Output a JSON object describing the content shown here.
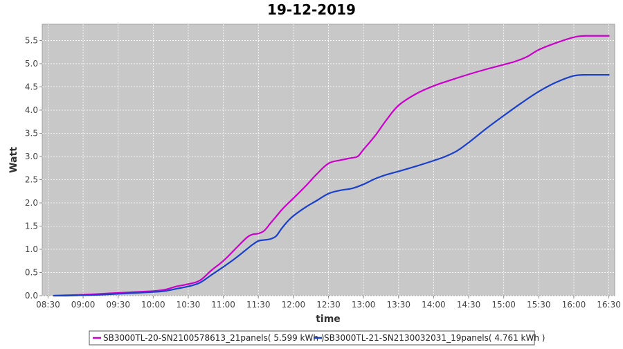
{
  "chart_data": {
    "type": "line",
    "title": "19-12-2019",
    "xlabel": "time",
    "ylabel": "Watt",
    "xlim": [
      "08:25",
      "16:35"
    ],
    "ylim": [
      0.0,
      5.85
    ],
    "x_ticks": [
      "08:30",
      "09:00",
      "09:30",
      "10:00",
      "10:30",
      "11:00",
      "11:30",
      "12:00",
      "12:30",
      "13:00",
      "13:30",
      "14:00",
      "14:30",
      "15:00",
      "15:30",
      "16:00",
      "16:30"
    ],
    "y_ticks": [
      "0.0",
      "0.5",
      "1.0",
      "1.5",
      "2.0",
      "2.5",
      "3.0",
      "3.5",
      "4.0",
      "4.5",
      "5.0",
      "5.5"
    ],
    "grid": true,
    "legend_position": "bottom",
    "plot_background": "#c8c8c8",
    "series": [
      {
        "name": "SB3000TL-20-SN2100578613_21panels( 5.599 kWh )",
        "color": "#cc00cc",
        "x": [
          "08:35",
          "08:45",
          "09:00",
          "09:15",
          "09:30",
          "09:45",
          "10:00",
          "10:10",
          "10:20",
          "10:30",
          "10:40",
          "10:50",
          "11:00",
          "11:10",
          "11:20",
          "11:25",
          "11:30",
          "11:35",
          "11:40",
          "11:45",
          "11:50",
          "11:55",
          "12:00",
          "12:10",
          "12:20",
          "12:30",
          "12:40",
          "12:50",
          "12:55",
          "13:00",
          "13:10",
          "13:20",
          "13:30",
          "13:45",
          "14:00",
          "14:15",
          "14:30",
          "14:45",
          "15:00",
          "15:10",
          "15:20",
          "15:30",
          "15:45",
          "16:00",
          "16:10",
          "16:20",
          "16:30"
        ],
        "y": [
          0.0,
          0.01,
          0.02,
          0.04,
          0.06,
          0.08,
          0.1,
          0.13,
          0.2,
          0.25,
          0.33,
          0.55,
          0.75,
          1.0,
          1.25,
          1.32,
          1.34,
          1.4,
          1.55,
          1.7,
          1.85,
          1.98,
          2.1,
          2.35,
          2.62,
          2.85,
          2.92,
          2.97,
          3.0,
          3.15,
          3.45,
          3.8,
          4.1,
          4.35,
          4.52,
          4.65,
          4.77,
          4.88,
          4.98,
          5.05,
          5.15,
          5.3,
          5.45,
          5.57,
          5.6,
          5.6,
          5.6
        ]
      },
      {
        "name": "SB3000TL-21-SN2130032031_19panels( 4.761 kWh )",
        "color": "#1a3fcc",
        "x": [
          "08:35",
          "08:45",
          "09:00",
          "09:15",
          "09:30",
          "09:45",
          "10:00",
          "10:10",
          "10:20",
          "10:30",
          "10:40",
          "10:50",
          "11:00",
          "11:10",
          "11:20",
          "11:25",
          "11:30",
          "11:35",
          "11:40",
          "11:45",
          "11:50",
          "11:55",
          "12:00",
          "12:10",
          "12:20",
          "12:30",
          "12:40",
          "12:50",
          "13:00",
          "13:10",
          "13:20",
          "13:30",
          "13:45",
          "14:00",
          "14:10",
          "14:20",
          "14:30",
          "14:45",
          "15:00",
          "15:15",
          "15:30",
          "15:45",
          "16:00",
          "16:10",
          "16:20",
          "16:30"
        ],
        "y": [
          0.0,
          0.0,
          0.01,
          0.02,
          0.04,
          0.06,
          0.08,
          0.1,
          0.15,
          0.2,
          0.28,
          0.45,
          0.62,
          0.8,
          1.0,
          1.1,
          1.18,
          1.2,
          1.22,
          1.28,
          1.45,
          1.6,
          1.72,
          1.9,
          2.05,
          2.2,
          2.27,
          2.31,
          2.4,
          2.52,
          2.61,
          2.68,
          2.79,
          2.91,
          3.0,
          3.12,
          3.3,
          3.6,
          3.88,
          4.15,
          4.4,
          4.6,
          4.74,
          4.76,
          4.76,
          4.76
        ]
      }
    ]
  }
}
